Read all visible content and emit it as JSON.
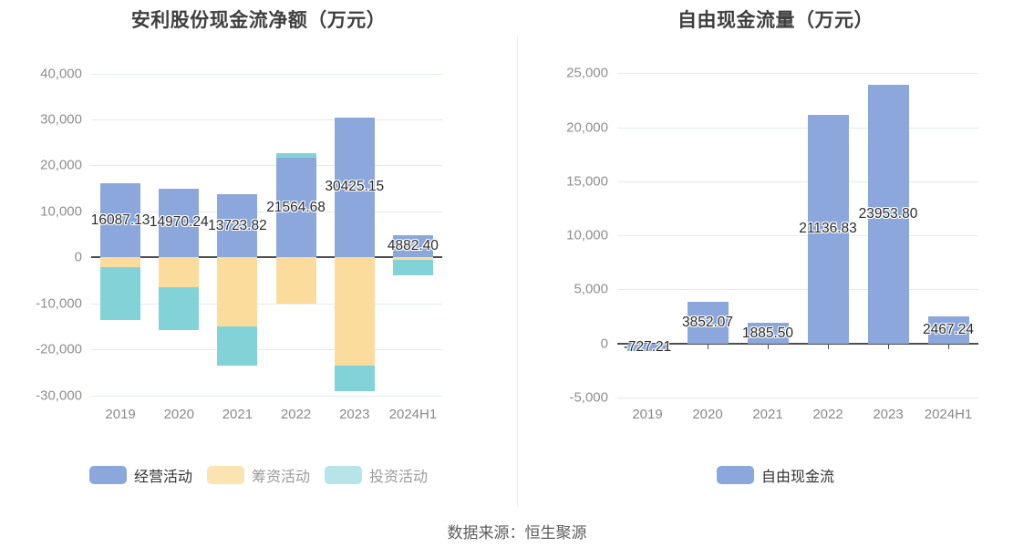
{
  "page": {
    "caption": "数据来源：恒生聚源",
    "background_color": "#ffffff",
    "gridline_color": "#e3e9f5",
    "axis_line_color": "#4d4d4d"
  },
  "chart_data": [
    {
      "type": "bar",
      "stacked": true,
      "title": "安利股份现金流净额（万元）",
      "categories": [
        "2019",
        "2020",
        "2021",
        "2022",
        "2023",
        "2024H1"
      ],
      "series": [
        {
          "name": "经营活动",
          "color": "#8BA7DB",
          "values": [
            16087.13,
            14970.24,
            13723.82,
            21564.68,
            30425.15,
            4882.4
          ],
          "labels": [
            "16087.13",
            "14970.24",
            "13723.82",
            "21564.68",
            "30425.15",
            "4882.40"
          ]
        },
        {
          "name": "筹资活动",
          "color": "#FBDC9C",
          "values": [
            -2200,
            -6600,
            -15100,
            -10100,
            -23500,
            -550
          ]
        },
        {
          "name": "投资活动",
          "color": "#82D3D8",
          "values": [
            -11450,
            -9150,
            -8500,
            1050,
            -5600,
            -3300
          ]
        }
      ],
      "ylim": [
        -30000,
        40000
      ],
      "ytick_step": 10000,
      "grid": true,
      "legend_position": "bottom",
      "legend": [
        {
          "label": "经营活动",
          "marker_color": "#8BA7DB",
          "text_color": "#333333"
        },
        {
          "label": "筹资活动",
          "marker_color": "#FBE3B2",
          "text_color": "#9b9b9b"
        },
        {
          "label": "投资活动",
          "marker_color": "#B7E4E9",
          "text_color": "#9b9b9b"
        }
      ],
      "xlabel": "",
      "ylabel": ""
    },
    {
      "type": "bar",
      "stacked": false,
      "title": "自由现金流量（万元）",
      "categories": [
        "2019",
        "2020",
        "2021",
        "2022",
        "2023",
        "2024H1"
      ],
      "series": [
        {
          "name": "自由现金流",
          "color": "#8BA7DB",
          "values": [
            -727.21,
            3852.07,
            1885.5,
            21136.83,
            23953.8,
            2467.24
          ],
          "labels": [
            "-727.21",
            "3852.07",
            "1885.50",
            "21136.83",
            "23953.80",
            "2467.24"
          ]
        }
      ],
      "ylim": [
        -5000,
        25000
      ],
      "ytick_step": 5000,
      "grid": true,
      "legend_position": "bottom",
      "legend": [
        {
          "label": "自由现金流",
          "marker_color": "#8BA7DB",
          "text_color": "#333333"
        }
      ],
      "xlabel": "",
      "ylabel": ""
    }
  ]
}
